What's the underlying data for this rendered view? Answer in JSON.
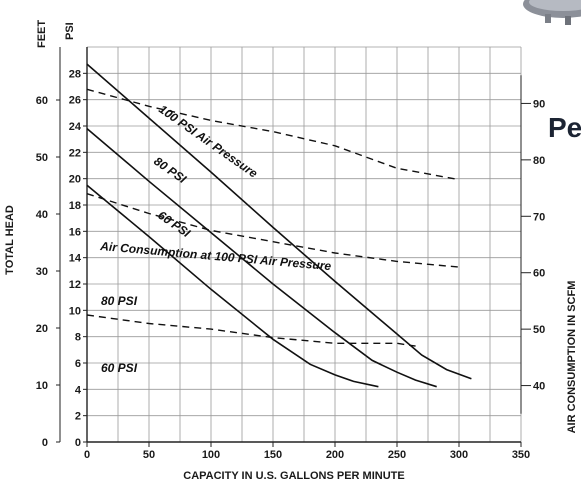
{
  "heading_fragment": "Pe",
  "chart_data": {
    "type": "line",
    "xlabel": "CAPACITY IN U.S. GALLONS PER MINUTE",
    "x_ticks": [
      "0",
      "50",
      "100",
      "150",
      "200",
      "250",
      "300",
      "350"
    ],
    "xlim": [
      0,
      350
    ],
    "left_axis_feet": {
      "unit_label": "FEET",
      "title": "TOTAL HEAD",
      "ticks": [
        "0",
        "10",
        "20",
        "30",
        "40",
        "50",
        "60"
      ],
      "values": [
        0,
        10,
        20,
        30,
        40,
        50,
        60
      ]
    },
    "left_axis_psi": {
      "unit_label": "PSI",
      "ticks": [
        "0",
        "2",
        "4",
        "6",
        "8",
        "10",
        "12",
        "14",
        "16",
        "18",
        "20",
        "22",
        "24",
        "26",
        "28"
      ],
      "ylim": [
        0,
        30
      ]
    },
    "right_axis": {
      "title": "AIR CONSUMPTION IN SCFM",
      "ticks": [
        "40",
        "50",
        "60",
        "70",
        "80",
        "90"
      ],
      "ylim": [
        30,
        100
      ]
    },
    "grid": true,
    "series": [
      {
        "name": "100 PSI Air Pressure",
        "style": "solid",
        "axis": "psi",
        "x": [
          0,
          50,
          100,
          150,
          200,
          250,
          270,
          290,
          310
        ],
        "y": [
          28.7,
          24.6,
          20.5,
          16.3,
          12.2,
          8.2,
          6.6,
          5.5,
          4.8
        ]
      },
      {
        "name": "80 PSI",
        "style": "solid",
        "axis": "psi",
        "x": [
          0,
          50,
          100,
          150,
          200,
          230,
          250,
          265,
          282
        ],
        "y": [
          23.8,
          19.8,
          15.9,
          12.0,
          8.3,
          6.2,
          5.3,
          4.7,
          4.2
        ]
      },
      {
        "name": "60 PSI",
        "style": "solid",
        "axis": "psi",
        "x": [
          0,
          50,
          100,
          150,
          180,
          200,
          215,
          235
        ],
        "y": [
          19.5,
          15.6,
          11.6,
          7.8,
          5.9,
          5.1,
          4.6,
          4.2
        ]
      },
      {
        "name": "Air Consumption at 100 PSI Air Pressure",
        "style": "dashed",
        "axis": "scfm",
        "x": [
          0,
          50,
          100,
          150,
          200,
          250,
          300
        ],
        "y": [
          92.5,
          89.5,
          87,
          85,
          82.5,
          78.5,
          76.5
        ]
      },
      {
        "name": "80 PSI",
        "style": "dashed",
        "axis": "scfm",
        "x": [
          0,
          50,
          100,
          150,
          200,
          250,
          300
        ],
        "y": [
          74,
          70.5,
          67.5,
          65.5,
          63.5,
          62,
          61
        ]
      },
      {
        "name": "60 PSI",
        "style": "dashed",
        "axis": "scfm",
        "x": [
          0,
          50,
          100,
          150,
          200,
          250,
          265
        ],
        "y": [
          52.5,
          51,
          50,
          48.5,
          47.5,
          47.5,
          47
        ]
      }
    ],
    "labels": {
      "curve_100": "100 PSI Air Pressure",
      "curve_80": "80 PSI",
      "curve_60": "60 PSI",
      "air_100": "Air Consumption at 100 PSI Air Pressure",
      "air_80": "80 PSI",
      "air_60": "60 PSI"
    }
  }
}
